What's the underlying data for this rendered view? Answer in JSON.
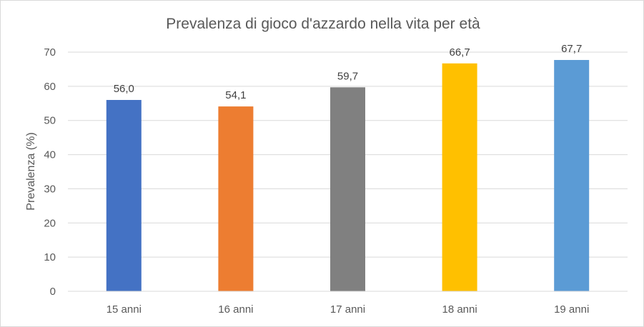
{
  "chart_data": {
    "type": "bar",
    "title": "Prevalenza di gioco d'azzardo nella vita per età",
    "xlabel": "",
    "ylabel": "Prevalenza (%)",
    "categories": [
      "15 anni",
      "16 anni",
      "17 anni",
      "18 anni",
      "19 anni"
    ],
    "values": [
      56.0,
      54.1,
      59.7,
      66.7,
      67.7
    ],
    "data_labels": [
      "56,0",
      "54,1",
      "59,7",
      "66,7",
      "67,7"
    ],
    "bar_colors": [
      "#4472c4",
      "#ed7d31",
      "#808080",
      "#ffc000",
      "#5b9bd5"
    ],
    "ylim": [
      0,
      70
    ],
    "yticks": [
      0,
      10,
      20,
      30,
      40,
      50,
      60,
      70
    ],
    "grid": true,
    "legend": "none"
  }
}
